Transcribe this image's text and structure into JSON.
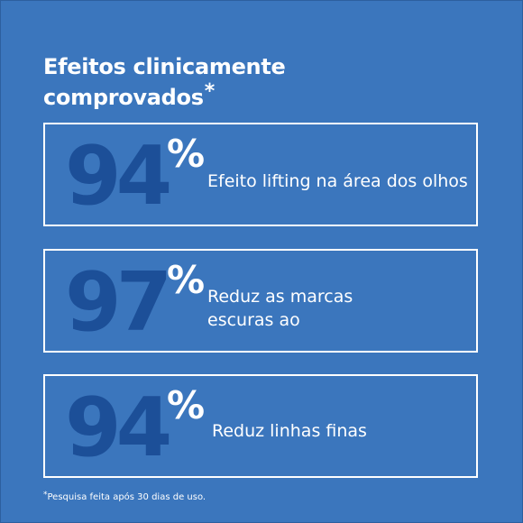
{
  "heading": {
    "line1": "Efeitos clinicamente",
    "line2": "comprovados",
    "asterisk": "*"
  },
  "stats": [
    {
      "value": "94",
      "percent_sign": "%",
      "label_line1": "Efeito lifting na área dos olhos",
      "label_line2": ""
    },
    {
      "value": "97",
      "percent_sign": "%",
      "label_line1": "Reduz as marcas",
      "label_line2": "escuras ao"
    },
    {
      "value": "94",
      "percent_sign": "%",
      "label_line1": "Reduz linhas finas",
      "label_line2": ""
    }
  ],
  "footnote": {
    "asterisk": "*",
    "text": "Pesquisa feita após 30 dias de uso."
  },
  "colors": {
    "background": "#3b76bd",
    "number_blue": "#1c4f98",
    "text_and_border": "#ffffff"
  }
}
